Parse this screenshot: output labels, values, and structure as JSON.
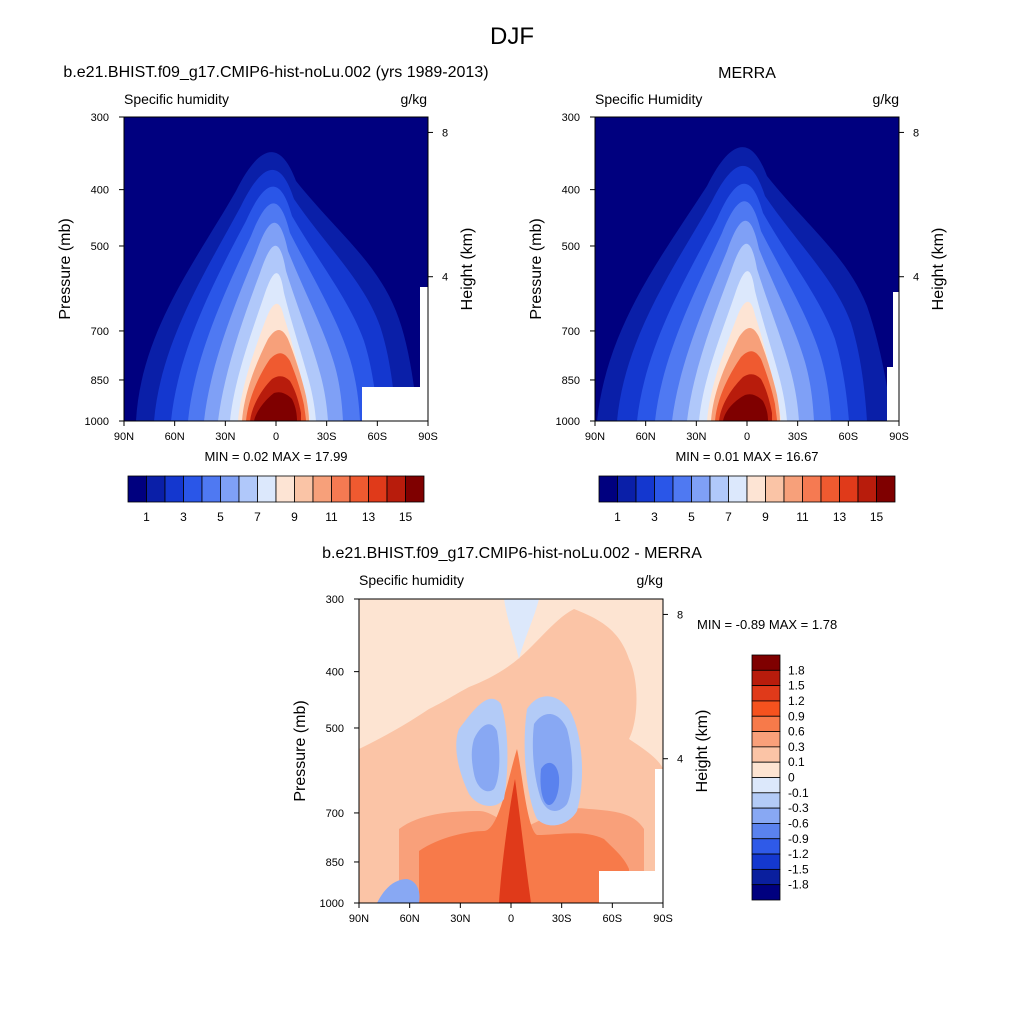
{
  "page_title": "DJF",
  "chart_data": [
    {
      "type": "heatmap",
      "title": "b.e21.BHIST.f09_g17.CMIP6-hist-noLu.002 (yrs 1989-2013)",
      "variable": "Specific humidity",
      "units": "g/kg",
      "ylabel": "Pressure (mb)",
      "ylabel_right": "Height (km)",
      "x_ticks": [
        "90N",
        "60N",
        "30N",
        "0",
        "30S",
        "60S",
        "90S"
      ],
      "y_ticks": [
        300,
        400,
        500,
        700,
        850,
        1000
      ],
      "y_ticks_right": [
        8,
        4
      ],
      "ylim": [
        1000,
        300
      ],
      "min_max_text": "MIN =   0.02  MAX =  17.99",
      "colorbar": {
        "orientation": "horizontal",
        "tick_labels": [
          "1",
          "3",
          "5",
          "7",
          "9",
          "11",
          "13",
          "15"
        ],
        "colors": [
          "#00007f",
          "#0a1fa8",
          "#1437cf",
          "#2a56e8",
          "#4f79f2",
          "#7fa0f6",
          "#b0c8fa",
          "#dce8fc",
          "#fde4d4",
          "#fac4a6",
          "#f7a07a",
          "#f57a52",
          "#ef5a30",
          "#e03a1a",
          "#b81c0c",
          "#7f0000"
        ]
      }
    },
    {
      "type": "heatmap",
      "title": "MERRA",
      "variable": "Specific Humidity",
      "units": "g/kg",
      "ylabel": "Pressure (mb)",
      "ylabel_right": "Height (km)",
      "x_ticks": [
        "90N",
        "60N",
        "30N",
        "0",
        "30S",
        "60S",
        "90S"
      ],
      "y_ticks": [
        300,
        400,
        500,
        700,
        850,
        1000
      ],
      "y_ticks_right": [
        8,
        4
      ],
      "ylim": [
        1000,
        300
      ],
      "min_max_text": "MIN =   0.01  MAX =  16.67",
      "colorbar": {
        "orientation": "horizontal",
        "tick_labels": [
          "1",
          "3",
          "5",
          "7",
          "9",
          "11",
          "13",
          "15"
        ],
        "colors": [
          "#00007f",
          "#0a1fa8",
          "#1437cf",
          "#2a56e8",
          "#4f79f2",
          "#7fa0f6",
          "#b0c8fa",
          "#dce8fc",
          "#fde4d4",
          "#fac4a6",
          "#f7a07a",
          "#f57a52",
          "#ef5a30",
          "#e03a1a",
          "#b81c0c",
          "#7f0000"
        ]
      }
    },
    {
      "type": "heatmap",
      "title": "b.e21.BHIST.f09_g17.CMIP6-hist-noLu.002 - MERRA",
      "variable": "Specific humidity",
      "units": "g/kg",
      "ylabel": "Pressure (mb)",
      "ylabel_right": "Height (km)",
      "x_ticks": [
        "90N",
        "60N",
        "30N",
        "0",
        "30S",
        "60S",
        "90S"
      ],
      "y_ticks": [
        300,
        400,
        500,
        700,
        850,
        1000
      ],
      "y_ticks_right": [
        8,
        4
      ],
      "ylim": [
        1000,
        300
      ],
      "min_max_text": "MIN =  -0.89  MAX =   1.78",
      "colorbar": {
        "orientation": "vertical",
        "tick_labels": [
          "1.8",
          "1.5",
          "1.2",
          "0.9",
          "0.6",
          "0.3",
          "0.1",
          "0",
          "-0.1",
          "-0.3",
          "-0.6",
          "-0.9",
          "-1.2",
          "-1.5",
          "-1.8"
        ],
        "colors": [
          "#7f0000",
          "#b81c0c",
          "#e03a1a",
          "#f5521e",
          "#f77a4a",
          "#f9a07a",
          "#fbc4a6",
          "#fde4d2",
          "#dce8fb",
          "#b3cbf7",
          "#88a8f3",
          "#5a82ee",
          "#2f5ae8",
          "#1438cf",
          "#0a1f9e",
          "#00007f"
        ]
      }
    }
  ]
}
